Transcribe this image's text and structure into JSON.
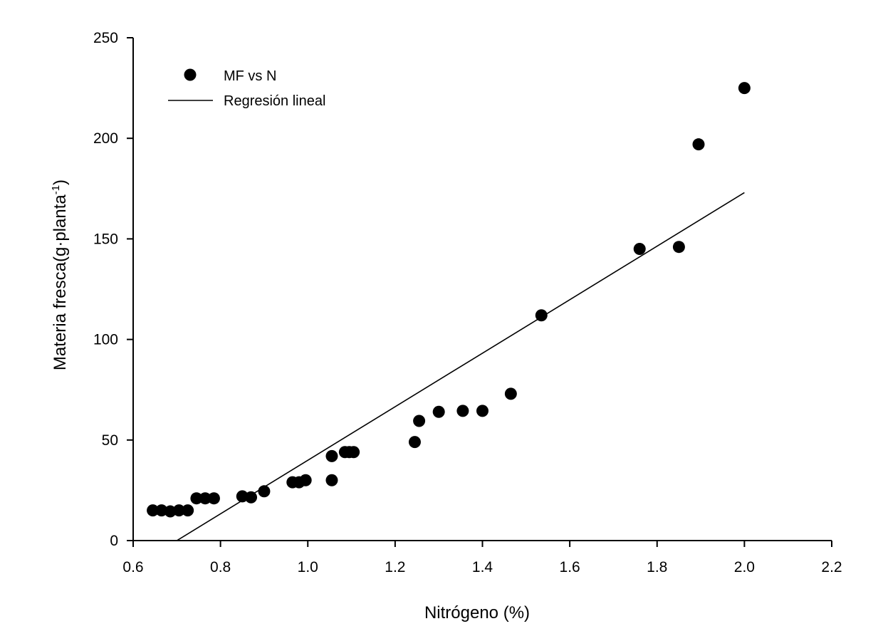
{
  "chart_data": {
    "type": "scatter",
    "title": "",
    "xlabel": "Nitrógeno (%)",
    "ylabel_main": "Materia fresca(g·planta",
    "ylabel_sup": "-1",
    "ylabel_close": ")",
    "xlim": [
      0.6,
      2.2
    ],
    "ylim": [
      0,
      250
    ],
    "x_ticks": [
      0.6,
      0.8,
      1.0,
      1.2,
      1.4,
      1.6,
      1.8,
      2.0,
      2.2
    ],
    "x_tick_labels": [
      "0.6",
      "0.8",
      "1.0",
      "1.2",
      "1.4",
      "1.6",
      "1.8",
      "2.0",
      "2.2"
    ],
    "y_ticks": [
      0,
      50,
      100,
      150,
      200,
      250
    ],
    "y_tick_labels": [
      "0",
      "50",
      "100",
      "150",
      "200",
      "250"
    ],
    "grid": false,
    "legend_position": "top-left",
    "series": [
      {
        "name": "MF vs N",
        "kind": "scatter",
        "color": "#000000",
        "points": [
          [
            0.645,
            15
          ],
          [
            0.665,
            15
          ],
          [
            0.685,
            14.5
          ],
          [
            0.705,
            15
          ],
          [
            0.725,
            15
          ],
          [
            0.745,
            21
          ],
          [
            0.765,
            21
          ],
          [
            0.785,
            21
          ],
          [
            0.85,
            22
          ],
          [
            0.87,
            21.5
          ],
          [
            0.9,
            24.5
          ],
          [
            0.965,
            29
          ],
          [
            0.98,
            29
          ],
          [
            0.995,
            30
          ],
          [
            1.055,
            42
          ],
          [
            1.055,
            30
          ],
          [
            1.085,
            44
          ],
          [
            1.095,
            44
          ],
          [
            1.105,
            44
          ],
          [
            1.245,
            49
          ],
          [
            1.255,
            59.5
          ],
          [
            1.3,
            64
          ],
          [
            1.355,
            64.5
          ],
          [
            1.4,
            64.5
          ],
          [
            1.465,
            73
          ],
          [
            1.535,
            112
          ],
          [
            1.76,
            145
          ],
          [
            1.85,
            146
          ],
          [
            1.895,
            197
          ],
          [
            2.0,
            225
          ]
        ]
      },
      {
        "name": "Regresión lineal",
        "kind": "line",
        "color": "#000000",
        "points": [
          [
            0.7,
            0
          ],
          [
            2.0,
            173
          ]
        ]
      }
    ]
  }
}
